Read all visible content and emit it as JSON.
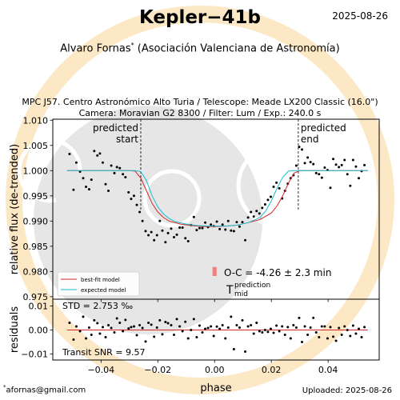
{
  "header": {
    "title": "Kepler−41b",
    "date": "2025-08-26",
    "observer": "Alvaro Fornas",
    "observer_mark": "*",
    "affiliation": "(Asociación Valenciana de Astronomía)",
    "observatory_line": "MPC J57. Centro Astronómico Alto Turia / Telescope: Meade LX200 Classic (16.0\")",
    "camera_line": "Camera: Moravian G2 8300 / Filter: Lum / Exp.: 240.0 s"
  },
  "footer": {
    "email_mark": "*",
    "email": "afornas@gmail.com",
    "uploaded": "Uploaded: 2025-08-26"
  },
  "colors": {
    "watermark_orange": "#fde8c6",
    "watermark_gray": "#e6e6e6",
    "best_fit": "#d62728",
    "expected": "#17becf",
    "data_points": "#000000",
    "oc_bar": "#f08080"
  },
  "chart_data": [
    {
      "type": "scatter",
      "panel": "light-curve",
      "xlabel": "",
      "ylabel": "relative flux (de-trended)",
      "xlim": [
        -0.057,
        0.058
      ],
      "ylim": [
        0.9745,
        1.0102
      ],
      "xticks": [
        -0.04,
        -0.02,
        0.0,
        0.02,
        0.04
      ],
      "yticks": [
        0.975,
        0.98,
        0.985,
        0.99,
        0.995,
        1.0,
        1.005,
        1.01
      ],
      "ytick_labels": [
        "0.975",
        "0.980",
        "0.985",
        "0.990",
        "0.995",
        "1.000",
        "1.005",
        "1.010"
      ],
      "series": [
        {
          "kind": "points",
          "x": [
            -0.0511,
            -0.0497,
            -0.0487,
            -0.0474,
            -0.0463,
            -0.0453,
            -0.0442,
            -0.0434,
            -0.0424,
            -0.0413,
            -0.0404,
            -0.0394,
            -0.0384,
            -0.0374,
            -0.0364,
            -0.0353,
            -0.0344,
            -0.0334,
            -0.0323,
            -0.0314,
            -0.0303,
            -0.0294,
            -0.0284,
            -0.0274,
            -0.0264,
            -0.0254,
            -0.0243,
            -0.0233,
            -0.0223,
            -0.0213,
            -0.0203,
            -0.0193,
            -0.0184,
            -0.0173,
            -0.0164,
            -0.0153,
            -0.0143,
            -0.0133,
            -0.0123,
            -0.0113,
            -0.0103,
            -0.0093,
            -0.0083,
            -0.0073,
            -0.0063,
            -0.0053,
            -0.0043,
            -0.0033,
            -0.0023,
            -0.0013,
            -0.0003,
            0.0008,
            0.0018,
            0.0028,
            0.0038,
            0.0048,
            0.0058,
            0.0068,
            0.0078,
            0.0088,
            0.0098,
            0.0108,
            0.0118,
            0.0128,
            0.0138,
            0.0148,
            0.0158,
            0.0168,
            0.0178,
            0.0188,
            0.0198,
            0.0208,
            0.0218,
            0.0228,
            0.0238,
            0.0248,
            0.0258,
            0.0268,
            0.0278,
            0.0288,
            0.0298,
            0.0308,
            0.0318,
            0.0328,
            0.0338,
            0.0348,
            0.0358,
            0.0368,
            0.0378,
            0.0388,
            0.0398,
            0.0408,
            0.0418,
            0.0428,
            0.0438,
            0.0448,
            0.0458,
            0.0468,
            0.0478,
            0.0488,
            0.0498,
            0.0508,
            0.0518,
            0.0528
          ],
          "y": [
            1.0033,
            0.9962,
            1.0016,
            0.9998,
            0.9985,
            0.9968,
            0.9963,
            0.9982,
            1.0039,
            1.003,
            1.0034,
            1.0016,
            0.9973,
            0.996,
            1.001,
            0.9995,
            1.0007,
            1.0005,
            0.9993,
            0.9987,
            0.9957,
            0.9944,
            0.995,
            0.9932,
            0.9918,
            0.99,
            0.988,
            0.9872,
            0.9878,
            0.9862,
            0.9872,
            0.99,
            0.9881,
            0.9858,
            0.9876,
            0.9885,
            0.9868,
            0.9873,
            0.9887,
            0.9887,
            0.9866,
            0.986,
            0.9892,
            0.9908,
            0.9882,
            0.9886,
            0.9886,
            0.9897,
            0.9888,
            0.9893,
            0.989,
            0.9899,
            0.9884,
            0.9893,
            0.9883,
            0.99,
            0.9881,
            0.988,
            0.9898,
            0.9889,
            0.9898,
            0.9862,
            0.9907,
            0.9918,
            0.9909,
            0.992,
            0.9915,
            0.9926,
            0.9933,
            0.9942,
            0.9948,
            0.9968,
            0.9976,
            0.9965,
            0.9945,
            0.996,
            0.9974,
            0.9985,
            0.9991,
            1.001,
            1.0047,
            1.0042,
            1.0015,
            1.0026,
            1.0017,
            1.0013,
            0.9995,
            0.9993,
            0.9986,
            1.0006,
            1.0001,
            0.9966,
            1.0023,
            1.0012,
            1.0007,
            1.0011,
            1.0021,
            0.9993,
            0.997,
            1.0021,
            1.0008,
            0.9985,
            0.9999,
            1.0011
          ]
        },
        {
          "kind": "line",
          "name": "best-fit model",
          "x": [
            -0.052,
            -0.03,
            -0.028,
            -0.026,
            -0.024,
            -0.022,
            -0.02,
            -0.018,
            -0.016,
            -0.012,
            -0.008,
            -0.004,
            0.0,
            0.004,
            0.008,
            0.012,
            0.016,
            0.02,
            0.022,
            0.024,
            0.026,
            0.028,
            0.03,
            0.032,
            0.054
          ],
          "y": [
            1.0,
            1.0,
            0.9999,
            0.9985,
            0.996,
            0.9935,
            0.9918,
            0.9907,
            0.99,
            0.9894,
            0.9891,
            0.9889,
            0.9889,
            0.989,
            0.9892,
            0.9897,
            0.9903,
            0.9916,
            0.993,
            0.995,
            0.9975,
            0.9995,
            1.0,
            1.0,
            1.0
          ]
        },
        {
          "kind": "line",
          "name": "expected model",
          "x": [
            -0.052,
            -0.028,
            -0.026,
            -0.024,
            -0.022,
            -0.02,
            -0.018,
            -0.016,
            -0.014,
            -0.01,
            -0.006,
            -0.002,
            0.0,
            0.004,
            0.008,
            0.012,
            0.016,
            0.018,
            0.02,
            0.022,
            0.024,
            0.026,
            0.028,
            0.03,
            0.054
          ],
          "y": [
            1.0,
            1.0,
            0.9998,
            0.998,
            0.995,
            0.9928,
            0.9914,
            0.9905,
            0.9899,
            0.9894,
            0.9891,
            0.989,
            0.989,
            0.989,
            0.9892,
            0.9897,
            0.9907,
            0.992,
            0.994,
            0.9965,
            0.9987,
            0.9999,
            1.0,
            1.0,
            1.0
          ]
        }
      ],
      "predicted_start": {
        "x": -0.026,
        "label_lines": [
          "predicted",
          "start"
        ]
      },
      "predicted_end": {
        "x": 0.0295,
        "label_lines": [
          "predicted",
          "end"
        ]
      },
      "oc_marker": {
        "x": 0.0,
        "y_low": 0.9791,
        "y_high": 0.9809
      },
      "oc_text": "O-C = -4.26 ± 2.3 min",
      "tmid": {
        "symbol": "T",
        "superscript": "prediction",
        "subscript": "mid"
      },
      "legend": {
        "placement": "lower-left",
        "entries": [
          "best-fit model",
          "expected model"
        ]
      }
    },
    {
      "type": "scatter",
      "panel": "residuals",
      "xlabel": "phase",
      "ylabel": "residuals",
      "xlim": [
        -0.057,
        0.058
      ],
      "ylim": [
        -0.0125,
        0.0128
      ],
      "xticks": [
        -0.04,
        -0.02,
        0.0,
        0.02,
        0.04
      ],
      "xtick_labels": [
        "−0.04",
        "−0.02",
        "0.00",
        "0.02",
        "0.04"
      ],
      "yticks": [
        -0.01,
        0.0,
        0.01
      ],
      "ytick_labels": [
        "−0.01",
        "0.00",
        "0.01"
      ],
      "zero_line": true,
      "series": [
        {
          "kind": "points",
          "x": [
            -0.0511,
            -0.0497,
            -0.0487,
            -0.0474,
            -0.0463,
            -0.0453,
            -0.0442,
            -0.0434,
            -0.0424,
            -0.0413,
            -0.0404,
            -0.0394,
            -0.0384,
            -0.0374,
            -0.0364,
            -0.0353,
            -0.0344,
            -0.0334,
            -0.0323,
            -0.0314,
            -0.0303,
            -0.0294,
            -0.0284,
            -0.0274,
            -0.0264,
            -0.0254,
            -0.0243,
            -0.0233,
            -0.0223,
            -0.0213,
            -0.0203,
            -0.0193,
            -0.0184,
            -0.0173,
            -0.0164,
            -0.0153,
            -0.0143,
            -0.0133,
            -0.0123,
            -0.0113,
            -0.0103,
            -0.0093,
            -0.0083,
            -0.0073,
            -0.0063,
            -0.0053,
            -0.0043,
            -0.0033,
            -0.0023,
            -0.0013,
            -0.0003,
            0.0008,
            0.0018,
            0.0028,
            0.0038,
            0.0048,
            0.0058,
            0.0068,
            0.0078,
            0.0088,
            0.0098,
            0.0108,
            0.0118,
            0.0128,
            0.0138,
            0.0148,
            0.0158,
            0.0168,
            0.0178,
            0.0188,
            0.0198,
            0.0208,
            0.0218,
            0.0228,
            0.0238,
            0.0248,
            0.0258,
            0.0268,
            0.0278,
            0.0288,
            0.0298,
            0.0308,
            0.0318,
            0.0328,
            0.0338,
            0.0348,
            0.0358,
            0.0368,
            0.0378,
            0.0388,
            0.0398,
            0.0408,
            0.0418,
            0.0428,
            0.0438,
            0.0448,
            0.0458,
            0.0468,
            0.0478,
            0.0488,
            0.0498,
            0.0508,
            0.0518,
            0.0528
          ],
          "y": [
            0.003,
            -0.004,
            0.0015,
            -0.0005,
            0.0055,
            -0.0035,
            0.001,
            -0.002,
            0.004,
            0.0028,
            -0.0015,
            0.0012,
            -0.003,
            0.002,
            0.0008,
            -0.001,
            0.0048,
            0.003,
            -0.0005,
            0.0042,
            0.0006,
            0.0012,
            0.0015,
            -0.0022,
            0.002,
            0.0008,
            -0.0048,
            0.003,
            0.0022,
            -0.0028,
            0.001,
            0.004,
            -0.0018,
            0.0033,
            0.0028,
            0.002,
            -0.002,
            0.0045,
            0.0015,
            -0.0005,
            0.0034,
            -0.0035,
            0.0,
            0.0045,
            -0.003,
            0.0018,
            -0.001,
            0.0005,
            0.0008,
            0.0015,
            -0.0025,
            0.0014,
            0.0005,
            0.002,
            -0.0035,
            0.001,
            0.0055,
            -0.008,
            0.002,
            0.001,
            0.004,
            -0.009,
            0.0015,
            0.002,
            -0.0015,
            0.003,
            -0.0005,
            -0.001,
            0.0,
            -0.0008,
            0.0005,
            -0.0012,
            0.0018,
            -0.0005,
            0.0015,
            -0.002,
            0.0012,
            -0.0035,
            0.002,
            0.001,
            0.005,
            -0.005,
            0.0015,
            -0.002,
            0.001,
            0.005,
            -0.001,
            -0.003,
            0.0015,
            0.0015,
            -0.0035,
            0.0012,
            -0.0028,
            -0.0045,
            0.0008,
            -0.002,
            0.0015,
            0.0,
            -0.0025,
            0.0018,
            -0.0015,
            0.0005,
            -0.003,
            0.0012
          ]
        }
      ],
      "std_text": "STD = 2.753 ‰",
      "snr_text": "Transit SNR = 9.57"
    }
  ]
}
